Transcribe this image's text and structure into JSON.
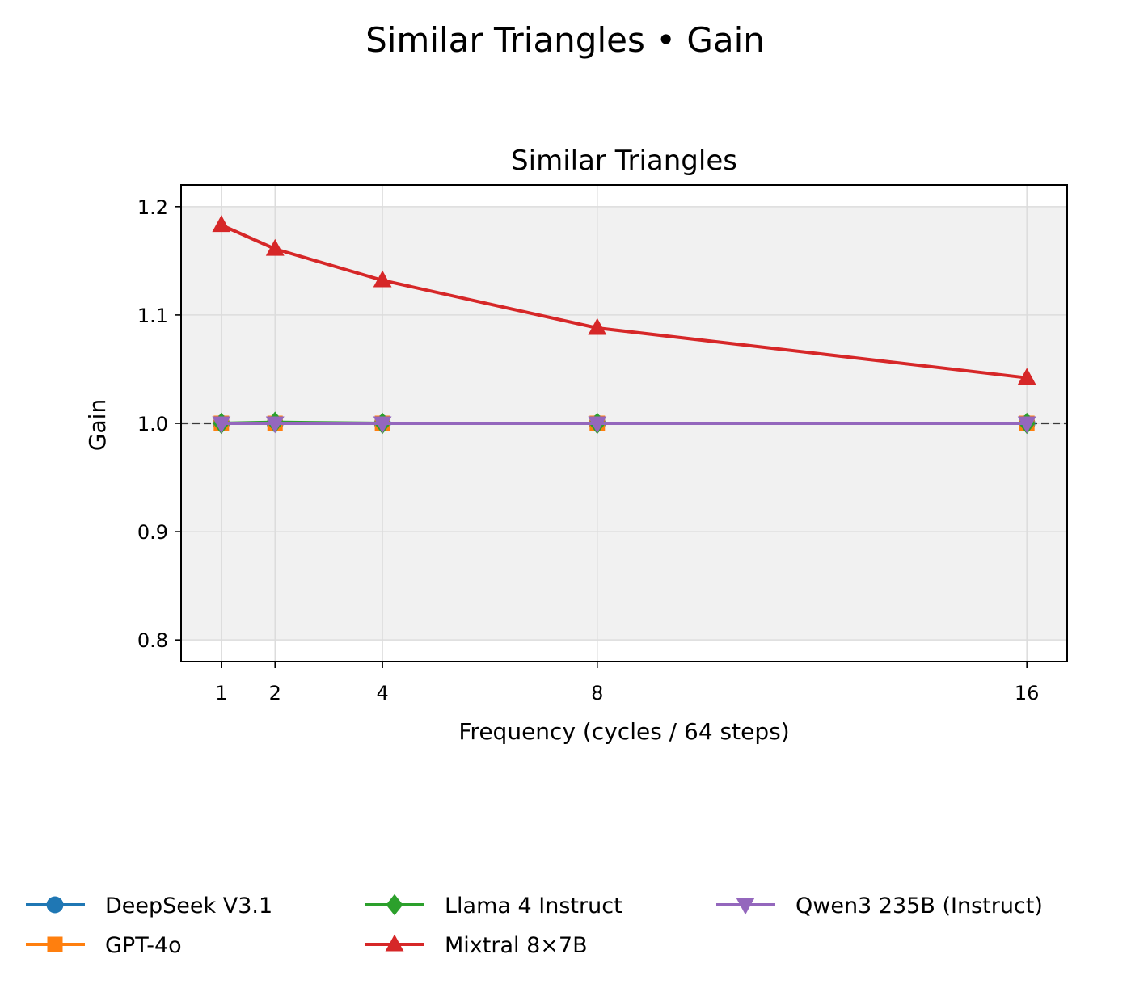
{
  "suptitle": "Similar Triangles • Gain",
  "chart_data": {
    "type": "line",
    "title": "Similar Triangles",
    "xlabel": "Frequency (cycles / 64 steps)",
    "ylabel": "Gain",
    "x": [
      1,
      2,
      4,
      8,
      16
    ],
    "x_ticks": [
      "1",
      "2",
      "4",
      "8",
      "16"
    ],
    "y_ticks": [
      "0.8",
      "0.9",
      "1.0",
      "1.1",
      "1.2"
    ],
    "xlim": [
      0.25,
      16.75
    ],
    "ylim": [
      0.78,
      1.22
    ],
    "grid": true,
    "reference_line": 1.0,
    "shaded_band": [
      0.8,
      1.2
    ],
    "legend_position": "bottom",
    "series": [
      {
        "name": "DeepSeek V3.1",
        "color": "#1f77b4",
        "marker": "circle",
        "values": [
          1.0,
          1.0,
          1.0,
          1.0,
          1.0
        ]
      },
      {
        "name": "GPT-4o",
        "color": "#ff7f0e",
        "marker": "square",
        "values": [
          1.0,
          1.0,
          1.0,
          1.0,
          1.0
        ]
      },
      {
        "name": "Llama 4 Instruct",
        "color": "#2ca02c",
        "marker": "diamond",
        "values": [
          1.0,
          1.001,
          1.0,
          1.0,
          1.0
        ]
      },
      {
        "name": "Mixtral 8×7B",
        "color": "#d62728",
        "marker": "triangle-up",
        "values": [
          1.183,
          1.161,
          1.132,
          1.088,
          1.042
        ]
      },
      {
        "name": "Qwen3 235B (Instruct)",
        "color": "#9467bd",
        "marker": "triangle-down",
        "values": [
          1.0,
          1.0,
          1.0,
          1.0,
          1.0
        ]
      }
    ]
  }
}
